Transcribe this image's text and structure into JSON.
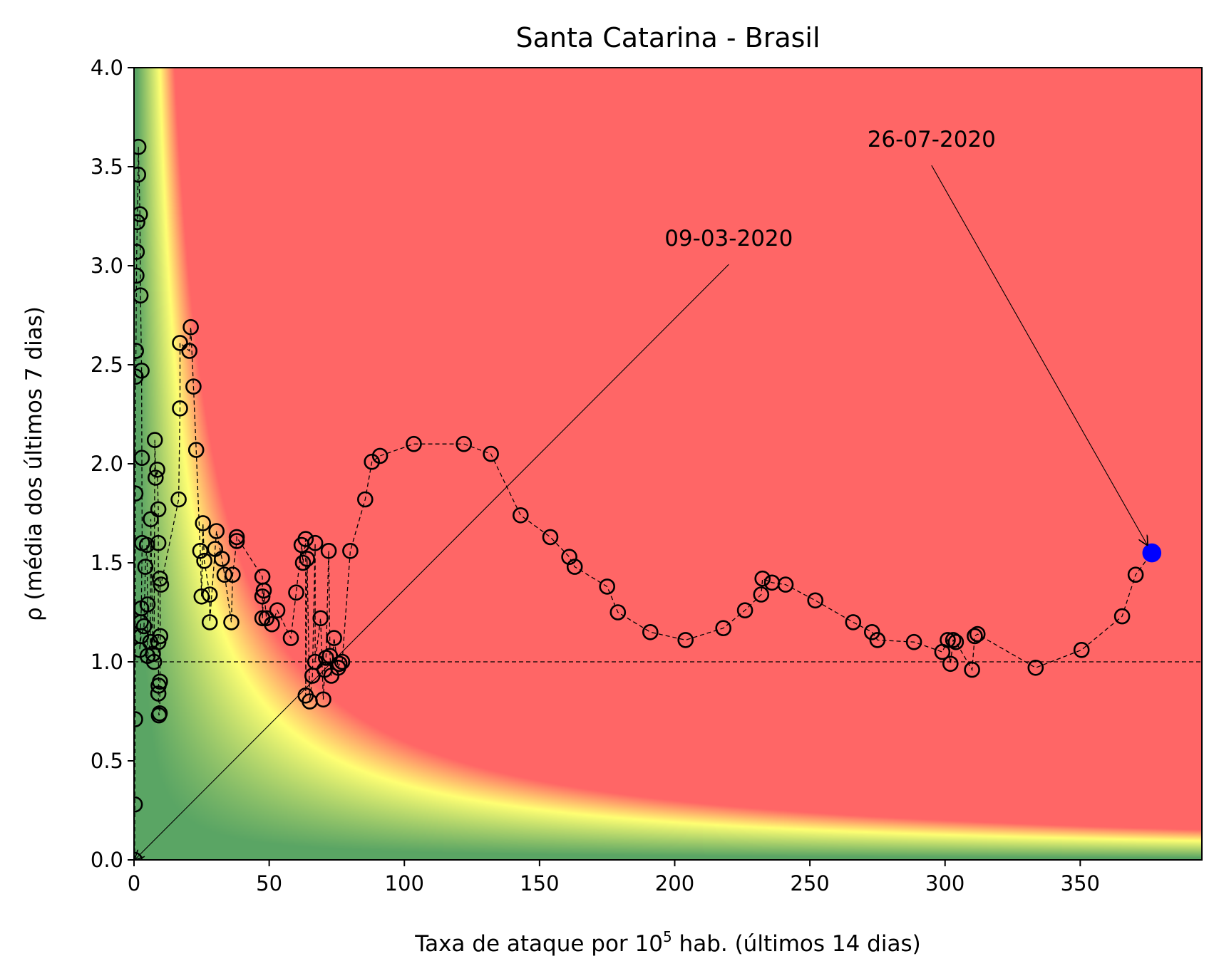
{
  "chart_data": {
    "type": "scatter",
    "title": "Santa Catarina - Brasil",
    "xlabel": {
      "prefix": "Taxa de ataque por 10",
      "sup": "5",
      "suffix": " hab. (últimos 14 dias)"
    },
    "ylabel": "ρ (média dos últimos 7 dias)",
    "xlim": [
      0,
      395
    ],
    "ylim": [
      0,
      4.0
    ],
    "xticks": [
      0,
      50,
      100,
      150,
      200,
      250,
      300,
      350
    ],
    "yticks": [
      0.0,
      0.5,
      1.0,
      1.5,
      2.0,
      2.5,
      3.0,
      3.5,
      4.0
    ],
    "ytick_labels": [
      "0.0",
      "0.5",
      "1.0",
      "1.5",
      "2.0",
      "2.5",
      "3.0",
      "3.5",
      "4.0"
    ],
    "grid": false,
    "reference_line_y": 1.0,
    "background": "risk heatmap (green low, yellow mid, red high) as a function of rate × ρ",
    "colors": {
      "green": "#5aa564",
      "yellow": "#ffff73",
      "red": "#ff6666",
      "marker_edge": "#000000",
      "last_point": "#0000ff"
    },
    "series": [
      {
        "points": [
          [
            0.2,
            0.0
          ],
          [
            0.3,
            0.28
          ],
          [
            0.4,
            0.71
          ],
          [
            0.5,
            1.85
          ],
          [
            0.6,
            2.44
          ],
          [
            0.7,
            2.57
          ],
          [
            0.9,
            2.95
          ],
          [
            1.0,
            3.07
          ],
          [
            1.2,
            3.22
          ],
          [
            1.5,
            3.46
          ],
          [
            1.6,
            3.6
          ],
          [
            2.2,
            3.26
          ],
          [
            2.4,
            2.85
          ],
          [
            2.8,
            2.47
          ],
          [
            2.9,
            2.03
          ],
          [
            3.0,
            1.6
          ],
          [
            2.7,
            1.27
          ],
          [
            2.5,
            1.2
          ],
          [
            2.1,
            1.06
          ],
          [
            2.6,
            1.13
          ],
          [
            3.7,
            1.18
          ],
          [
            4.2,
            1.48
          ],
          [
            4.8,
            1.59
          ],
          [
            5.0,
            1.29
          ],
          [
            5.0,
            1.03
          ],
          [
            6.0,
            1.1
          ],
          [
            6.2,
            1.72
          ],
          [
            7.0,
            1.04
          ],
          [
            7.4,
            1.0
          ],
          [
            7.7,
            2.12
          ],
          [
            8.0,
            1.93
          ],
          [
            8.6,
            1.97
          ],
          [
            9.0,
            1.77
          ],
          [
            9.0,
            1.6
          ],
          [
            9.0,
            1.1
          ],
          [
            9.1,
            0.88
          ],
          [
            9.0,
            0.84
          ],
          [
            9.2,
            0.73
          ],
          [
            9.5,
            0.74
          ],
          [
            9.6,
            0.9
          ],
          [
            9.7,
            1.13
          ],
          [
            9.6,
            1.42
          ],
          [
            10.0,
            1.39
          ],
          [
            16.5,
            1.82
          ],
          [
            17.0,
            2.28
          ],
          [
            17.0,
            2.61
          ],
          [
            20.5,
            2.57
          ],
          [
            21.0,
            2.69
          ],
          [
            22.0,
            2.39
          ],
          [
            23.0,
            2.07
          ],
          [
            24.5,
            1.56
          ],
          [
            25.0,
            1.33
          ],
          [
            25.5,
            1.7
          ],
          [
            26.0,
            1.51
          ],
          [
            28.0,
            1.34
          ],
          [
            28.0,
            1.2
          ],
          [
            30.0,
            1.57
          ],
          [
            30.5,
            1.66
          ],
          [
            32.5,
            1.52
          ],
          [
            33.5,
            1.44
          ],
          [
            36.0,
            1.2
          ],
          [
            36.5,
            1.44
          ],
          [
            38.0,
            1.61
          ],
          [
            38.0,
            1.63
          ],
          [
            47.5,
            1.43
          ],
          [
            47.5,
            1.33
          ],
          [
            47.5,
            1.22
          ],
          [
            48.0,
            1.36
          ],
          [
            49.0,
            1.22
          ],
          [
            51.0,
            1.19
          ],
          [
            53.0,
            1.26
          ],
          [
            58.0,
            1.12
          ],
          [
            60.0,
            1.35
          ],
          [
            62.0,
            1.59
          ],
          [
            62.5,
            1.5
          ],
          [
            63.5,
            1.62
          ],
          [
            63.5,
            0.83
          ],
          [
            64.0,
            1.52
          ],
          [
            65.0,
            0.8
          ],
          [
            66.0,
            0.93
          ],
          [
            67.0,
            1.6
          ],
          [
            67.0,
            1.0
          ],
          [
            69.0,
            1.22
          ],
          [
            70.0,
            0.81
          ],
          [
            70.5,
            0.96
          ],
          [
            71.0,
            1.02
          ],
          [
            72.0,
            1.56
          ],
          [
            72.5,
            1.03
          ],
          [
            73.0,
            0.93
          ],
          [
            74.0,
            1.12
          ],
          [
            75.5,
            0.97
          ],
          [
            76.0,
            0.99
          ],
          [
            77.0,
            1.0
          ],
          [
            80.0,
            1.56
          ],
          [
            85.5,
            1.82
          ],
          [
            88.0,
            2.01
          ],
          [
            91.0,
            2.04
          ],
          [
            103.5,
            2.1
          ],
          [
            122.0,
            2.1
          ],
          [
            132.0,
            2.05
          ],
          [
            143.0,
            1.74
          ],
          [
            154.0,
            1.63
          ],
          [
            161.0,
            1.53
          ],
          [
            163.0,
            1.48
          ],
          [
            175.0,
            1.38
          ],
          [
            179.0,
            1.25
          ],
          [
            191.0,
            1.15
          ],
          [
            204.0,
            1.11
          ],
          [
            218.0,
            1.17
          ],
          [
            226.0,
            1.26
          ],
          [
            232.0,
            1.34
          ],
          [
            232.5,
            1.42
          ],
          [
            236.0,
            1.4
          ],
          [
            241.0,
            1.39
          ],
          [
            252.0,
            1.31
          ],
          [
            266.0,
            1.2
          ],
          [
            273.0,
            1.15
          ],
          [
            275.0,
            1.11
          ],
          [
            288.5,
            1.1
          ],
          [
            299.0,
            1.05
          ],
          [
            301.0,
            1.11
          ],
          [
            302.0,
            0.99
          ],
          [
            303.0,
            1.11
          ],
          [
            304.0,
            1.1
          ],
          [
            310.0,
            0.96
          ],
          [
            311.0,
            1.13
          ],
          [
            312.0,
            1.14
          ],
          [
            333.5,
            0.97
          ],
          [
            350.5,
            1.06
          ],
          [
            365.5,
            1.23
          ],
          [
            370.5,
            1.44
          ],
          [
            376.5,
            1.55
          ]
        ]
      }
    ],
    "annotations": [
      {
        "text": "09-03-2020",
        "point": [
          0.2,
          0.0
        ],
        "label_at": [
          220,
          3.1
        ]
      },
      {
        "text": "26-07-2020",
        "point": [
          376.5,
          1.55
        ],
        "label_at": [
          295,
          3.6
        ]
      }
    ]
  }
}
